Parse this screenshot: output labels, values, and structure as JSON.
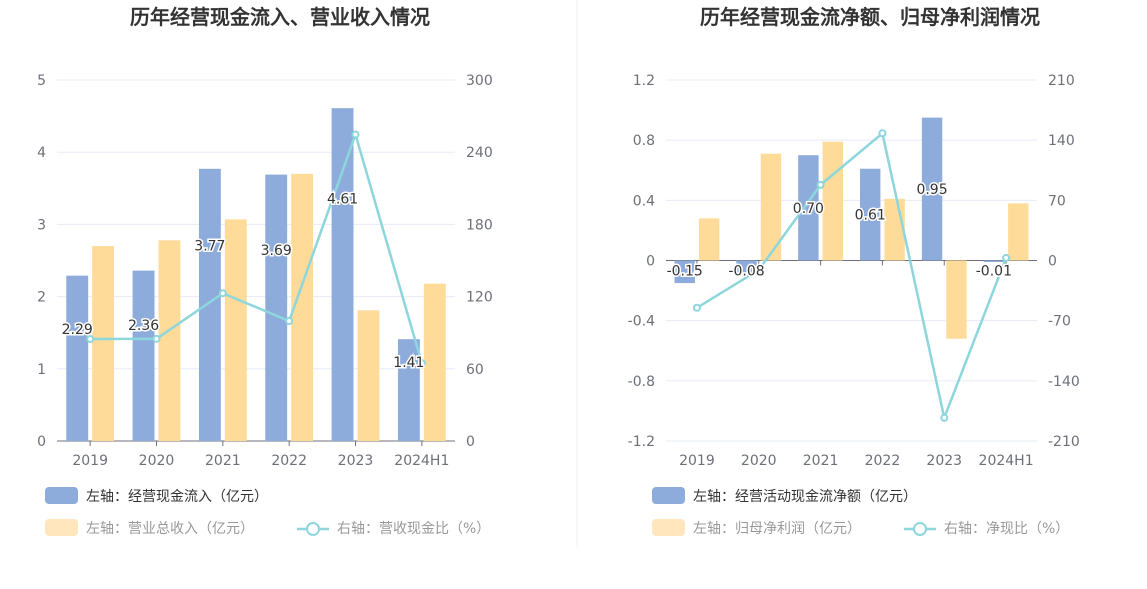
{
  "chart_data": [
    {
      "type": "bar",
      "title": "历年经营现金流入、营业收入情况",
      "categories": [
        "2019",
        "2020",
        "2021",
        "2022",
        "2023",
        "2024H1"
      ],
      "left_axis": {
        "min": 0,
        "max": 5,
        "ticks": [
          "0",
          "1",
          "2",
          "3",
          "4",
          "5"
        ]
      },
      "right_axis": {
        "min": 0,
        "max": 300,
        "ticks": [
          "0",
          "60",
          "120",
          "180",
          "240",
          "300"
        ]
      },
      "series": [
        {
          "name": "左轴：经营现金流入（亿元）",
          "axis": "left",
          "kind": "bar",
          "color": "#8eacdb",
          "values": [
            2.29,
            2.36,
            3.77,
            3.69,
            4.61,
            1.41
          ],
          "labels": [
            "2.29",
            "2.36",
            "3.77",
            "3.69",
            "4.61",
            "1.41"
          ]
        },
        {
          "name": "左轴：营业总收入（亿元）",
          "axis": "left",
          "kind": "bar",
          "color": "#ffdb9a",
          "values": [
            2.7,
            2.78,
            3.07,
            3.7,
            1.81,
            2.18
          ]
        },
        {
          "name": "右轴：营收现金比（%）",
          "axis": "right",
          "kind": "line",
          "color": "#8dd6dc",
          "values": [
            84.8,
            84.9,
            122.8,
            99.7,
            254.7,
            64.7
          ]
        }
      ],
      "legend_position": "bottom-left"
    },
    {
      "type": "bar",
      "title": "历年经营现金流净额、归母净利润情况",
      "categories": [
        "2019",
        "2020",
        "2021",
        "2022",
        "2023",
        "2024H1"
      ],
      "left_axis": {
        "min": -1.2,
        "max": 1.2,
        "ticks": [
          "-1.2",
          "-0.8",
          "-0.4",
          "0",
          "0.4",
          "0.8",
          "1.2"
        ]
      },
      "right_axis": {
        "min": -210,
        "max": 210,
        "ticks": [
          "-210",
          "-140",
          "-70",
          "0",
          "70",
          "140",
          "210"
        ]
      },
      "series": [
        {
          "name": "左轴：经营活动现金流净额（亿元）",
          "axis": "left",
          "kind": "bar",
          "color": "#8eacdb",
          "values": [
            -0.15,
            -0.08,
            0.7,
            0.61,
            0.95,
            -0.01
          ],
          "labels": [
            "-0.15",
            "-0.08",
            "0.70",
            "0.61",
            "0.95",
            "-0.01"
          ]
        },
        {
          "name": "左轴：归母净利润（亿元）",
          "axis": "left",
          "kind": "bar",
          "color": "#ffdb9a",
          "values": [
            0.28,
            0.71,
            0.79,
            0.41,
            -0.52,
            0.38
          ]
        },
        {
          "name": "右轴：净现比（%）",
          "axis": "right",
          "kind": "line",
          "color": "#8dd6dc",
          "values": [
            -55,
            -11,
            88,
            148,
            -183,
            3
          ]
        }
      ],
      "legend_position": "bottom-left"
    }
  ]
}
